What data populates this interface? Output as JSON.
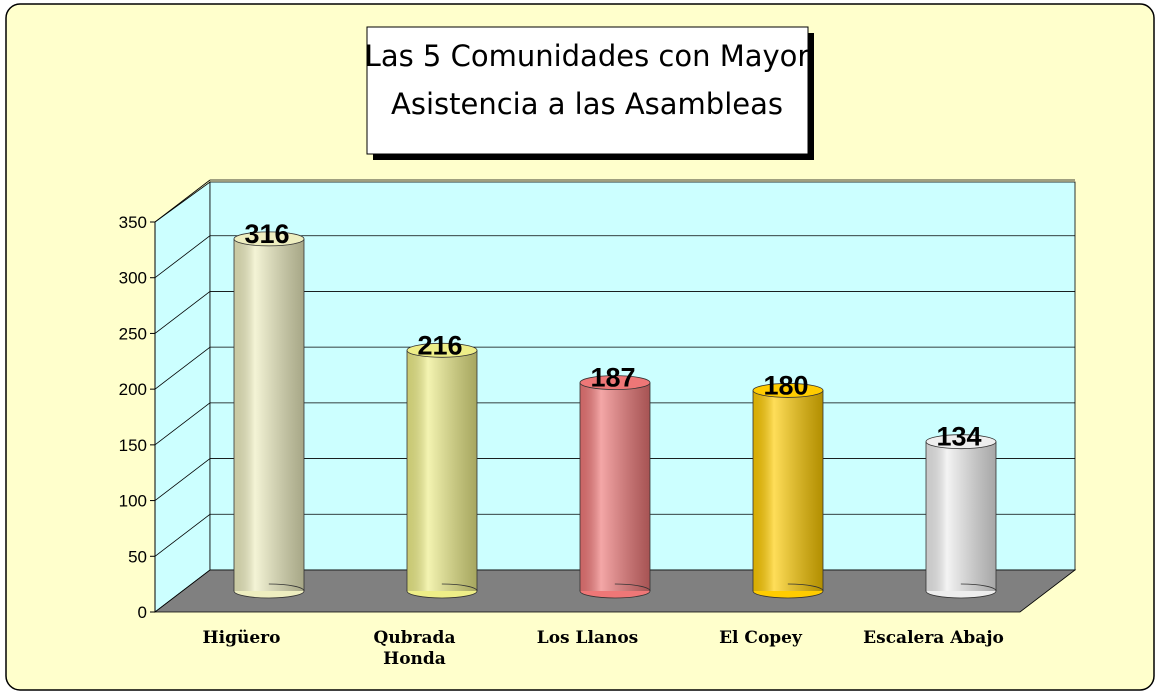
{
  "chart_data": {
    "type": "bar3d",
    "title": [
      "Las 5 Comunidades con Mayor",
      "Asistencia a las Asambleas"
    ],
    "categories": [
      "Higüero",
      "Qubrada\nHonda",
      "Los Llanos",
      "El Copey",
      "Escalera Abajo"
    ],
    "values": [
      316,
      216,
      187,
      180,
      134
    ],
    "colors": [
      "#eeeec0",
      "#eeee88",
      "#ee7777",
      "#ffcc00",
      "#eeeeee"
    ],
    "ylim": [
      0,
      350
    ],
    "yticks": [
      0,
      50,
      100,
      150,
      200,
      250,
      300,
      350
    ],
    "grid": true
  }
}
